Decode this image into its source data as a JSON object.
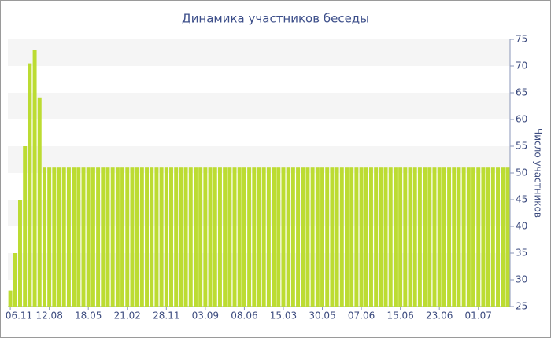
{
  "chart_data": {
    "type": "bar",
    "title": "Динамика участников беседы",
    "y_label": "Число участников",
    "categories": [
      "06.11",
      null,
      null,
      null,
      null,
      null,
      null,
      null,
      "12.08",
      null,
      null,
      null,
      null,
      null,
      null,
      null,
      "18.05",
      null,
      null,
      null,
      null,
      null,
      null,
      null,
      "21.02",
      null,
      null,
      null,
      null,
      null,
      null,
      null,
      "28.11",
      null,
      null,
      null,
      null,
      null,
      null,
      null,
      "03.09",
      null,
      null,
      null,
      null,
      null,
      null,
      null,
      "08.06",
      null,
      null,
      null,
      null,
      null,
      null,
      null,
      "15.03",
      null,
      null,
      null,
      null,
      null,
      null,
      null,
      "30.05",
      null,
      null,
      null,
      null,
      null,
      null,
      null,
      "07.06",
      null,
      null,
      null,
      null,
      null,
      null,
      null,
      "15.06",
      null,
      null,
      null,
      null,
      null,
      null,
      null,
      "23.06",
      null,
      null,
      null,
      null,
      null,
      null,
      null,
      "01.07",
      null,
      null,
      null,
      null,
      null,
      null
    ],
    "values": [
      28,
      35,
      45,
      55,
      70.5,
      73,
      64,
      51,
      51,
      51,
      51,
      51,
      51,
      51,
      51,
      51,
      51,
      51,
      51,
      51,
      51,
      51,
      51,
      51,
      51,
      51,
      51,
      51,
      51,
      51,
      51,
      51,
      51,
      51,
      51,
      51,
      51,
      51,
      51,
      51,
      51,
      51,
      51,
      51,
      51,
      51,
      51,
      51,
      51,
      51,
      51,
      51,
      51,
      51,
      51,
      51,
      51,
      51,
      51,
      51,
      51,
      51,
      51,
      51,
      51,
      51,
      51,
      51,
      51,
      51,
      51,
      51,
      51,
      51,
      51,
      51,
      51,
      51,
      51,
      51,
      51,
      51,
      51,
      51,
      51,
      51,
      51,
      51,
      51,
      51,
      51,
      51,
      51,
      51,
      51,
      51,
      51,
      51,
      51,
      51,
      51,
      51,
      51
    ],
    "color": "#bcdc32",
    "ylim": [
      25,
      75
    ],
    "yticks": [
      25,
      30,
      35,
      40,
      45,
      50,
      55,
      60,
      65,
      70,
      75
    ],
    "y_axis_side": "right",
    "banded_grid": true
  }
}
